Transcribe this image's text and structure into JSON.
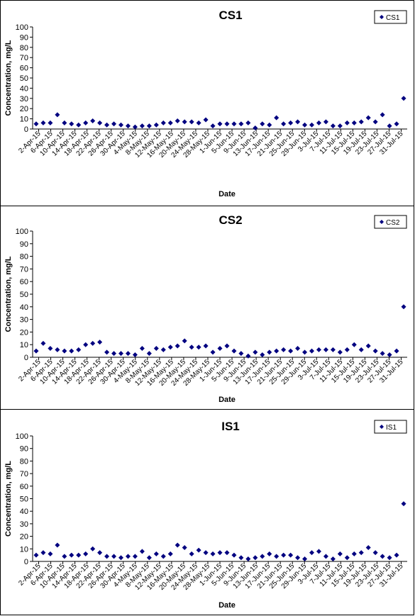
{
  "chart_data": [
    {
      "type": "scatter",
      "title": "CS1",
      "xlabel": "Date",
      "ylabel": "Concentration, mg/L",
      "ylim": [
        0,
        100
      ],
      "yticks": [
        "0",
        "10",
        "20",
        "30",
        "40",
        "50",
        "60",
        "70",
        "80",
        "90",
        "100"
      ],
      "xticks": [
        "2-Apr-15",
        "6-Apr-15",
        "10-Apr-15",
        "14-Apr-15",
        "18-Apr-15",
        "22-Apr-15",
        "26-Apr-15",
        "30-Apr-15",
        "4-May-15",
        "8-May-15",
        "12-May-15",
        "16-May-15",
        "20-May-15",
        "24-May-15",
        "28-May-15",
        "1-Jun-15",
        "5-Jun-15",
        "9-Jun-15",
        "13-Jun-15",
        "17-Jun-15",
        "21-Jun-15",
        "25-Jun-15",
        "29-Jun-15",
        "3-Jul-15",
        "7-Jul-15",
        "11-Jul-15",
        "15-Jul-15",
        "19-Jul-15",
        "23-Jul-15",
        "27-Jul-15",
        "31-Jul-15"
      ],
      "legend": "top-right",
      "series": [
        {
          "name": "CS1",
          "color": "#000080",
          "values": [
            5,
            6,
            6,
            14,
            6,
            5,
            4,
            6,
            8,
            6,
            4,
            5,
            4,
            3,
            2,
            3,
            3,
            4,
            6,
            6,
            8,
            7,
            7,
            6,
            9,
            3,
            5,
            5,
            5,
            5,
            6,
            1,
            5,
            4,
            11,
            5,
            6,
            7,
            4,
            4,
            6,
            7,
            3,
            3,
            6,
            6,
            7,
            11,
            7,
            14,
            3,
            5,
            30
          ]
        }
      ]
    },
    {
      "type": "scatter",
      "title": "CS2",
      "xlabel": "Date",
      "ylabel": "Concentration, mg/L",
      "ylim": [
        0,
        100
      ],
      "yticks": [
        "0",
        "10",
        "20",
        "30",
        "40",
        "50",
        "60",
        "70",
        "80",
        "90",
        "100"
      ],
      "xticks": [
        "2-Apr-15",
        "6-Apr-15",
        "10-Apr-15",
        "14-Apr-15",
        "18-Apr-15",
        "22-Apr-15",
        "26-Apr-15",
        "30-Apr-15",
        "4-May-15",
        "8-May-15",
        "12-May-15",
        "16-May-15",
        "20-May-15",
        "24-May-15",
        "28-May-15",
        "1-Jun-15",
        "5-Jun-15",
        "9-Jun-15",
        "13-Jun-15",
        "17-Jun-15",
        "21-Jun-15",
        "25-Jun-15",
        "29-Jun-15",
        "3-Jul-15",
        "7-Jul-15",
        "11-Jul-15",
        "15-Jul-15",
        "19-Jul-15",
        "23-Jul-15",
        "27-Jul-15",
        "31-Jul-15"
      ],
      "legend": "top-right",
      "series": [
        {
          "name": "CS2",
          "color": "#000080",
          "values": [
            5,
            11,
            7,
            6,
            5,
            5,
            6,
            10,
            11,
            12,
            4,
            3,
            3,
            3,
            2,
            7,
            3,
            7,
            6,
            8,
            9,
            13,
            8,
            8,
            9,
            4,
            7,
            9,
            5,
            3,
            1,
            4,
            2,
            4,
            5,
            6,
            5,
            7,
            4,
            5,
            6,
            6,
            6,
            4,
            6,
            10,
            6,
            9,
            5,
            3,
            2,
            5,
            40
          ]
        }
      ]
    },
    {
      "type": "scatter",
      "title": "IS1",
      "xlabel": "Date",
      "ylabel": "Concentration, mg/L",
      "ylim": [
        0,
        100
      ],
      "yticks": [
        "0",
        "10",
        "20",
        "30",
        "40",
        "50",
        "60",
        "70",
        "80",
        "90",
        "100"
      ],
      "xticks": [
        "2-Apr-15",
        "6-Apr-15",
        "10-Apr-15",
        "14-Apr-15",
        "18-Apr-15",
        "22-Apr-15",
        "26-Apr-15",
        "30-Apr-15",
        "4-May-15",
        "8-May-15",
        "12-May-15",
        "16-May-15",
        "20-May-15",
        "24-May-15",
        "28-May-15",
        "1-Jun-15",
        "5-Jun-15",
        "9-Jun-15",
        "13-Jun-15",
        "17-Jun-15",
        "21-Jun-15",
        "25-Jun-15",
        "29-Jun-15",
        "3-Jul-15",
        "7-Jul-15",
        "11-Jul-15",
        "15-Jul-15",
        "19-Jul-15",
        "23-Jul-15",
        "27-Jul-15",
        "31-Jul-15"
      ],
      "legend": "top-right",
      "series": [
        {
          "name": "IS1",
          "color": "#000080",
          "values": [
            5,
            7,
            6,
            13,
            4,
            5,
            5,
            6,
            10,
            7,
            4,
            4,
            3,
            4,
            4,
            8,
            3,
            6,
            4,
            6,
            13,
            11,
            6,
            9,
            7,
            6,
            7,
            7,
            5,
            3,
            2,
            3,
            4,
            6,
            4,
            5,
            5,
            3,
            2,
            7,
            8,
            4,
            2,
            6,
            3,
            6,
            7,
            11,
            7,
            4,
            3,
            5,
            46
          ]
        }
      ]
    }
  ]
}
